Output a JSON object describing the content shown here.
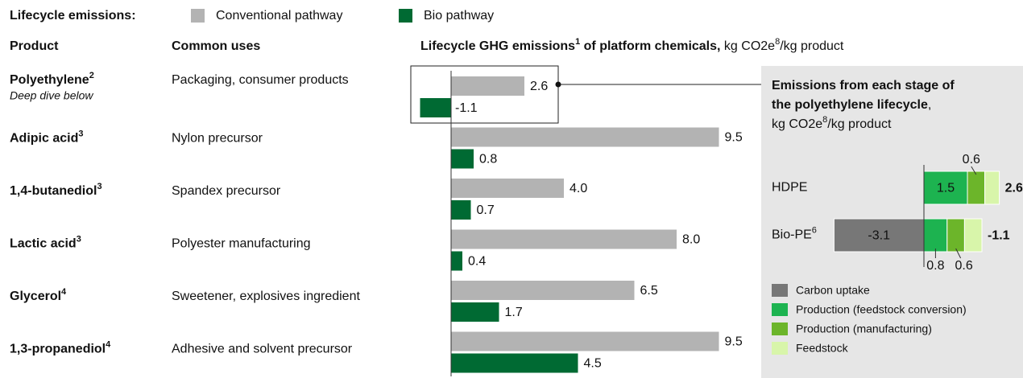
{
  "legend_title": "Lifecycle emissions:",
  "headers": {
    "product": "Product",
    "uses": "Common uses"
  },
  "chart_data": [
    {
      "type": "bar",
      "orientation": "horizontal",
      "title": [
        "Lifecycle GHG emissions",
        "1",
        " of platform chemicals,",
        " kg CO2e",
        "8",
        "/kg product"
      ],
      "categories": [
        "Polyethylene",
        "Adipic acid",
        "1,4-butanediol",
        "Lactic acid",
        "Glycerol",
        "1,3-propanediol"
      ],
      "category_notes": [
        "2",
        "3",
        "3",
        "3",
        "4",
        "4"
      ],
      "annotation": "Deep dive below",
      "uses": [
        "Packaging, consumer products",
        "Nylon precursor",
        "Spandex precursor",
        "Polyester manufacturing",
        "Sweetener, explosives ingredient",
        "Adhesive and solvent precursor"
      ],
      "xlim": [
        -1.5,
        10.5
      ],
      "series": [
        {
          "name": "Conventional pathway",
          "color": "#b3b3b3",
          "values": [
            2.6,
            9.5,
            4,
            8,
            6.5,
            9.5
          ],
          "value_labels": [
            "2.6",
            "9.5",
            "4.0",
            "8.0",
            "6.5",
            "9.5"
          ]
        },
        {
          "name": "Bio pathway",
          "color": "#006a33",
          "values": [
            -1.1,
            0.8,
            0.7,
            0.4,
            1.7,
            4.5
          ]
        }
      ]
    },
    {
      "type": "stacked_bar",
      "orientation": "horizontal",
      "title": [
        "Emissions from each stage of",
        "the polyethylene lifecycle"
      ],
      "title_suffix": ",",
      "unit": [
        "kg CO2e",
        "8",
        "/kg product"
      ],
      "categories": [
        "HDPE",
        "Bio-PE"
      ],
      "category_notes": [
        null,
        "6"
      ],
      "xlim": [
        -3.5,
        3.0
      ],
      "totals": [
        2.6,
        -1.1
      ],
      "series": [
        {
          "name": "Carbon uptake",
          "color": "#777777",
          "values": [
            null,
            -3.1
          ],
          "value_labels": [
            null,
            "-3.1"
          ]
        },
        {
          "name": "Production (feedstock conversion)",
          "color": "#1db350",
          "values": [
            1.5,
            0.8
          ],
          "value_labels": [
            "1.5",
            "0.8"
          ]
        },
        {
          "name": "Production (manufacturing)",
          "color": "#6cb52a",
          "values": [
            0.6,
            0.6
          ],
          "value_labels": [
            "0.6",
            "0.6"
          ]
        },
        {
          "name": "Feedstock",
          "color": "#d8f5aa",
          "values": [
            0.5,
            0.6
          ],
          "value_labels": [
            null,
            null
          ]
        }
      ]
    }
  ]
}
